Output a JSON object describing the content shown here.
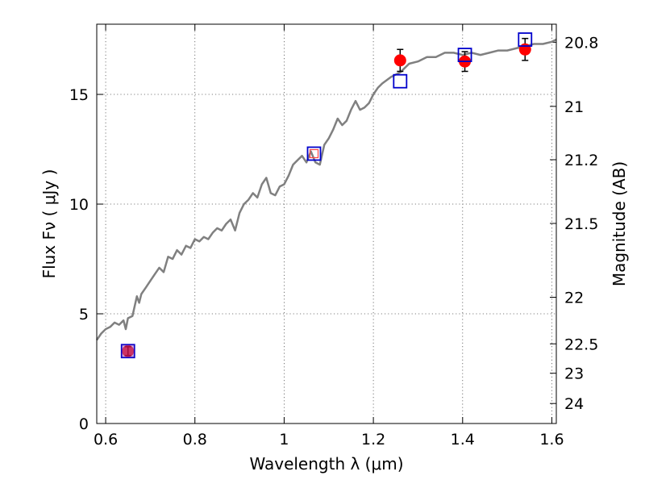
{
  "chart_data": {
    "type": "scatter",
    "xlabel": "Wavelength  λ (μm)",
    "ylabel": "Flux  Fν  ( μJy )",
    "y2label": "Magnitude (AB)",
    "xlim": [
      0.58,
      1.61
    ],
    "ylim": [
      0,
      18.2
    ],
    "grid": true,
    "x_ticks": [
      {
        "value": 0.6,
        "label": "0.6"
      },
      {
        "value": 0.8,
        "label": "0.8"
      },
      {
        "value": 1.0,
        "label": "1"
      },
      {
        "value": 1.2,
        "label": "1.2"
      },
      {
        "value": 1.4,
        "label": "1.4"
      },
      {
        "value": 1.6,
        "label": "1.6"
      }
    ],
    "y_ticks": [
      {
        "value": 0,
        "label": "0"
      },
      {
        "value": 5,
        "label": "5"
      },
      {
        "value": 10,
        "label": "10"
      },
      {
        "value": 15,
        "label": "15"
      }
    ],
    "y2_ticks": [
      {
        "value": 20.8,
        "label": "20.8"
      },
      {
        "value": 21.0,
        "label": "21"
      },
      {
        "value": 21.2,
        "label": "21.2"
      },
      {
        "value": 21.5,
        "label": "21.5"
      },
      {
        "value": 22.0,
        "label": "22"
      },
      {
        "value": 22.5,
        "label": "22.5"
      },
      {
        "value": 23.0,
        "label": "23"
      },
      {
        "value": 24.0,
        "label": "24"
      }
    ],
    "series": [
      {
        "kind": "model-spectrum",
        "color": "#808080",
        "x": [
          0.58,
          0.59,
          0.6,
          0.61,
          0.62,
          0.63,
          0.64,
          0.645,
          0.65,
          0.66,
          0.67,
          0.675,
          0.68,
          0.69,
          0.7,
          0.71,
          0.72,
          0.73,
          0.74,
          0.75,
          0.76,
          0.77,
          0.78,
          0.79,
          0.8,
          0.81,
          0.82,
          0.83,
          0.84,
          0.85,
          0.86,
          0.87,
          0.88,
          0.89,
          0.9,
          0.91,
          0.92,
          0.93,
          0.94,
          0.95,
          0.96,
          0.97,
          0.98,
          0.99,
          1.0,
          1.01,
          1.02,
          1.03,
          1.04,
          1.05,
          1.06,
          1.07,
          1.08,
          1.09,
          1.1,
          1.11,
          1.12,
          1.13,
          1.14,
          1.15,
          1.16,
          1.17,
          1.18,
          1.19,
          1.2,
          1.21,
          1.22,
          1.24,
          1.26,
          1.28,
          1.3,
          1.32,
          1.34,
          1.36,
          1.38,
          1.4,
          1.42,
          1.44,
          1.46,
          1.48,
          1.5,
          1.52,
          1.54,
          1.56,
          1.58,
          1.6,
          1.61
        ],
        "values": [
          3.8,
          4.1,
          4.3,
          4.4,
          4.6,
          4.5,
          4.7,
          4.3,
          4.8,
          4.9,
          5.8,
          5.5,
          5.9,
          6.2,
          6.5,
          6.8,
          7.1,
          6.9,
          7.6,
          7.5,
          7.9,
          7.7,
          8.1,
          8.0,
          8.4,
          8.3,
          8.5,
          8.4,
          8.7,
          8.9,
          8.8,
          9.1,
          9.3,
          8.8,
          9.6,
          10.0,
          10.2,
          10.5,
          10.3,
          10.9,
          11.2,
          10.5,
          10.4,
          10.8,
          10.9,
          11.3,
          11.8,
          12.0,
          12.2,
          11.9,
          12.4,
          11.9,
          11.8,
          12.7,
          13.0,
          13.4,
          13.9,
          13.6,
          13.8,
          14.3,
          14.7,
          14.3,
          14.4,
          14.6,
          15.0,
          15.3,
          15.5,
          15.8,
          16.0,
          16.4,
          16.5,
          16.7,
          16.7,
          16.9,
          16.9,
          16.8,
          16.9,
          16.8,
          16.9,
          17.0,
          17.0,
          17.1,
          17.2,
          17.3,
          17.3,
          17.4,
          17.5
        ]
      },
      {
        "kind": "observed",
        "color": "#ff0000",
        "x": [
          0.65,
          1.26,
          1.405,
          1.54
        ],
        "values": [
          3.3,
          16.55,
          16.5,
          17.05
        ],
        "errors": [
          0.2,
          0.5,
          0.45,
          0.5
        ]
      },
      {
        "kind": "synthetic",
        "color": "#0000cc",
        "x": [
          0.65,
          1.067,
          1.26,
          1.405,
          1.54
        ],
        "values": [
          3.3,
          12.3,
          15.6,
          16.8,
          17.5
        ]
      }
    ]
  }
}
